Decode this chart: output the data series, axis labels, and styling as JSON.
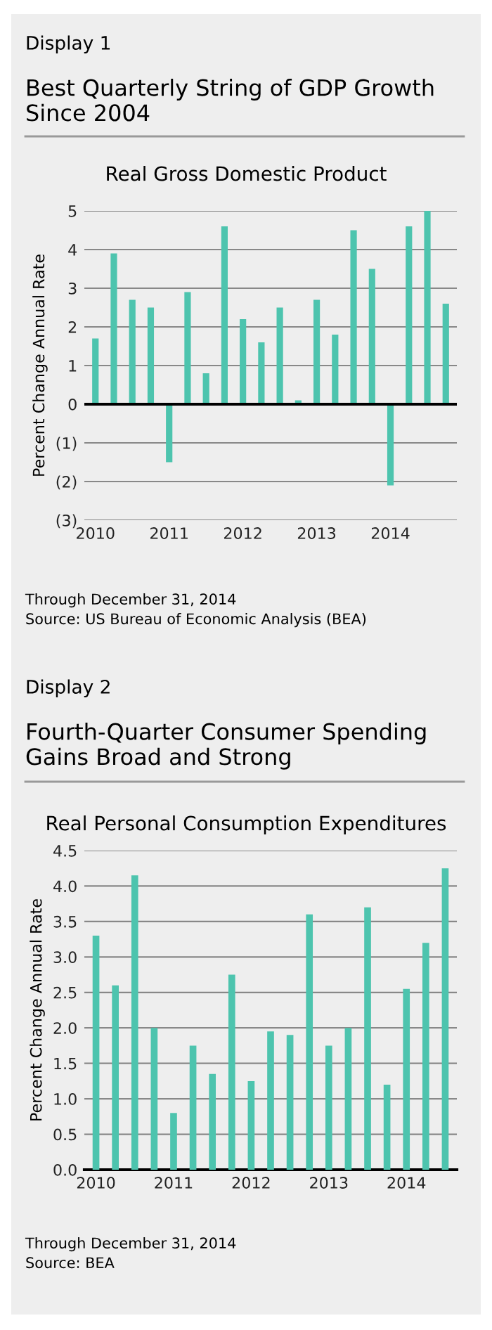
{
  "chart_data": [
    {
      "type": "bar",
      "title": "Best Quarterly String of GDP Growth Since 2004",
      "subtitle": "Real Gross Domestic Product",
      "ylabel": "Percent Change Annual Rate",
      "annotations": [
        "Display 1",
        "Through December 31, 2014",
        "Source: US Bureau of Economic Analysis (BEA)"
      ],
      "categories": [
        "2010",
        null,
        null,
        null,
        "2011",
        null,
        null,
        null,
        "2012",
        null,
        null,
        null,
        "2013",
        null,
        null,
        null,
        "2014",
        null,
        null,
        null
      ],
      "values": [
        1.7,
        3.9,
        2.7,
        2.5,
        -1.5,
        2.9,
        0.8,
        4.6,
        2.2,
        1.6,
        2.5,
        0.1,
        2.7,
        1.8,
        4.5,
        3.5,
        -2.1,
        4.6,
        5.0,
        2.6
      ],
      "color": "#4dc4ae",
      "ylim": [
        -3,
        5
      ],
      "yticks": [
        {
          "value": -3,
          "label": "(3)"
        },
        {
          "value": -2,
          "label": "(2)"
        },
        {
          "value": -1,
          "label": "(1)"
        },
        0,
        1,
        2,
        3,
        4,
        5
      ],
      "grid": "y",
      "ref_lines": [
        {
          "axis": "y",
          "value": 0,
          "color": "#000000"
        }
      ]
    },
    {
      "type": "bar",
      "title": "Fourth-Quarter Consumer Spending Gains Broad and Strong",
      "subtitle": "Real Personal Consumption Expenditures",
      "ylabel": "Percent Change Annual Rate",
      "annotations": [
        "Display 2",
        "Through December 31, 2014",
        "Source: BEA"
      ],
      "categories": [
        "2010",
        null,
        null,
        null,
        "2011",
        null,
        null,
        null,
        "2012",
        null,
        null,
        null,
        "2013",
        null,
        null,
        null,
        "2014",
        null,
        null
      ],
      "values": [
        3.3,
        2.6,
        4.15,
        2.0,
        0.8,
        1.75,
        1.35,
        2.75,
        1.25,
        1.95,
        1.9,
        3.6,
        1.75,
        2.0,
        3.7,
        1.2,
        2.55,
        3.2,
        4.25
      ],
      "color": "#4dc4ae",
      "ylim": [
        0,
        4.5
      ],
      "yticks": [
        {
          "value": 0,
          "label": "0.0"
        },
        {
          "value": 0.5,
          "label": "0.5"
        },
        {
          "value": 1,
          "label": "1.0"
        },
        {
          "value": 1.5,
          "label": "1.5"
        },
        {
          "value": 2,
          "label": "2.0"
        },
        {
          "value": 2.5,
          "label": "2.5"
        },
        {
          "value": 3,
          "label": "3.0"
        },
        {
          "value": 3.5,
          "label": "3.5"
        },
        {
          "value": 4,
          "label": "4.0"
        },
        {
          "value": 4.5,
          "label": "4.5"
        }
      ],
      "grid": "y"
    }
  ]
}
